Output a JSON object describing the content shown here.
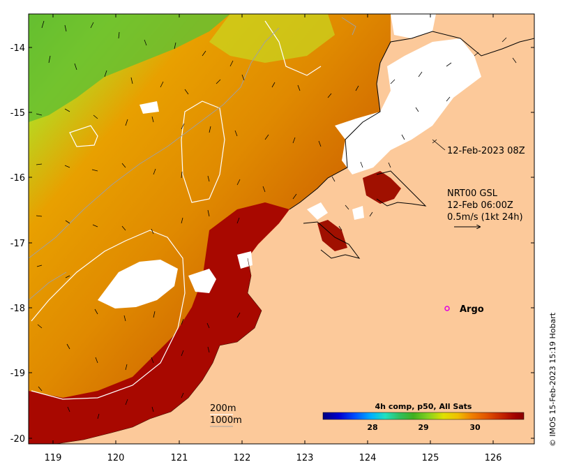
{
  "map": {
    "x_axis": {
      "ticks": [
        "119",
        "120",
        "121",
        "122",
        "123",
        "124",
        "125",
        "126"
      ]
    },
    "y_axis": {
      "ticks": [
        "-14",
        "-15",
        "-16",
        "-17",
        "-18",
        "-19",
        "-20"
      ]
    },
    "colors": {
      "land": "#fcc99a",
      "cloud": "#ffffff",
      "contour": "#a0a0a0",
      "isobath": "#ffffff"
    }
  },
  "annotations": {
    "timestamp": "12-Feb-2023 08Z",
    "current_source": "NRT00 GSL",
    "current_time": "12-Feb 06:00Z",
    "current_scale": "0.5m/s (1kt 24h)",
    "argo_label": "Argo",
    "isobath_200": "200m",
    "isobath_1000": "1000m",
    "credit": "© IMOS 15-Feb-2023 15:19 Hobart"
  },
  "colorbar": {
    "title": "4h comp, p50, All Sats",
    "ticks": [
      "28",
      "29",
      "30"
    ],
    "colors": [
      "#00007f",
      "#0000d0",
      "#0050ff",
      "#00b0ff",
      "#20e0c0",
      "#30c060",
      "#40b020",
      "#80d020",
      "#e0e000",
      "#f0c000",
      "#f08000",
      "#e05000",
      "#c02000",
      "#a00000",
      "#8a0000"
    ]
  }
}
